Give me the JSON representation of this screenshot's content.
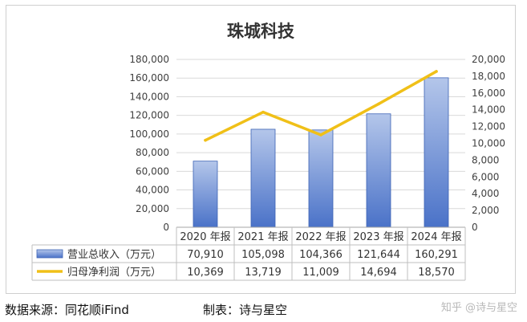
{
  "chart_data": {
    "type": "bar",
    "title": "珠城科技",
    "categories": [
      "2020 年报",
      "2021 年报",
      "2022 年报",
      "2023 年报",
      "2024 年报"
    ],
    "series": [
      {
        "name": "营业总收入（万元）",
        "type": "bar",
        "axis": "left",
        "values": [
          70910,
          105098,
          104366,
          121644,
          160291
        ],
        "labels": [
          "70,910",
          "105,098",
          "104,366",
          "121,644",
          "160,291"
        ],
        "color_top": "#b4c6ea",
        "color_bottom": "#4a72c8"
      },
      {
        "name": "归母净利润（万元）",
        "type": "line",
        "axis": "right",
        "values": [
          10369,
          13719,
          11009,
          14694,
          18570
        ],
        "labels": [
          "10,369",
          "13,719",
          "11,009",
          "14,694",
          "18,570"
        ],
        "color": "#f0c018"
      }
    ],
    "yleft": {
      "lim": [
        0,
        180000
      ],
      "ticks": [
        "0",
        "20,000",
        "40,000",
        "60,000",
        "80,000",
        "100,000",
        "120,000",
        "140,000",
        "160,000",
        "180,000"
      ]
    },
    "yright": {
      "lim": [
        0,
        20000
      ],
      "ticks": [
        "0",
        "2,000",
        "4,000",
        "6,000",
        "8,000",
        "10,000",
        "12,000",
        "14,000",
        "16,000",
        "18,000",
        "20,000"
      ]
    },
    "grid": true,
    "legend": "data-table"
  },
  "footer": {
    "source": "数据来源：同花顺iFind",
    "maker": "制表：诗与星空",
    "watermark": "知乎 @诗与星空"
  }
}
